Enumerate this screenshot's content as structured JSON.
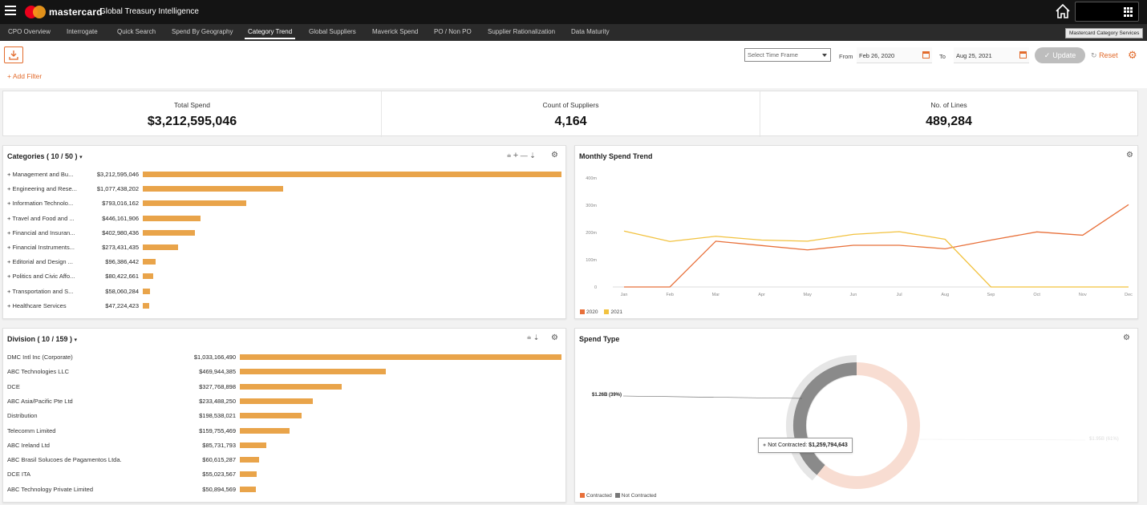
{
  "header": {
    "brand": "mastercard",
    "app_title": "Global Treasury Intelligence",
    "home_icon": "home-icon",
    "apps_icon": "grid-apps-icon"
  },
  "nav": {
    "tabs": [
      {
        "label": "CPO Overview",
        "active": false
      },
      {
        "label": "Interrogate",
        "active": false
      },
      {
        "label": "Quick Search",
        "active": false
      },
      {
        "label": "Spend By Geography",
        "active": false
      },
      {
        "label": "Category Trend",
        "active": true
      },
      {
        "label": "Global Suppliers",
        "active": false
      },
      {
        "label": "Maverick Spend",
        "active": false
      },
      {
        "label": "PO / Non PO",
        "active": false
      },
      {
        "label": "Supplier Rationalization",
        "active": false
      },
      {
        "label": "Data Maturity",
        "active": false
      }
    ],
    "tooltip": "Mastercard Category Services"
  },
  "toolbar": {
    "add_filter": "+ Add Filter",
    "time_frame_placeholder": "Select Time Frame",
    "from_label": "From",
    "from_date": "Feb 26, 2020",
    "to_label": "To",
    "to_date": "Aug 25, 2021",
    "update_label": "Update",
    "reset_label": "Reset",
    "accent": "#e26b2c"
  },
  "kpis": [
    {
      "title": "Total Spend",
      "value": "$3,212,595,046"
    },
    {
      "title": "Count of Suppliers",
      "value": "4,164"
    },
    {
      "title": "No. of Lines",
      "value": "489,284"
    }
  ],
  "categories": {
    "title": "Categories ( 10 / 50 )",
    "rows": [
      {
        "label": "+ Management and Bu...",
        "value_text": "$3,212,595,046",
        "value": 3212595046
      },
      {
        "label": "+ Engineering and Rese...",
        "value_text": "$1,077,438,202",
        "value": 1077438202
      },
      {
        "label": "+ Information Technolo...",
        "value_text": "$793,016,162",
        "value": 793016162
      },
      {
        "label": "+ Travel and Food and ...",
        "value_text": "$446,161,906",
        "value": 446161906
      },
      {
        "label": "+ Financial and Insuran...",
        "value_text": "$402,980,436",
        "value": 402980436
      },
      {
        "label": "+ Financial Instruments...",
        "value_text": "$273,431,435",
        "value": 273431435
      },
      {
        "label": "+ Editorial and Design ...",
        "value_text": "$96,386,442",
        "value": 96386442
      },
      {
        "label": "+ Politics and Civic Affo...",
        "value_text": "$80,422,661",
        "value": 80422661
      },
      {
        "label": "+ Transportation and S...",
        "value_text": "$58,060,284",
        "value": 58060284
      },
      {
        "label": "+ Healthcare Services",
        "value_text": "$47,224,423",
        "value": 47224423
      }
    ]
  },
  "divisions": {
    "title": "Division ( 10 / 159 )",
    "rows": [
      {
        "label": "DMC Intl Inc (Corporate)",
        "value_text": "$1,033,166,490",
        "value": 1033166490
      },
      {
        "label": "ABC Technologies LLC",
        "value_text": "$469,944,385",
        "value": 469944385
      },
      {
        "label": "DCE",
        "value_text": "$327,768,898",
        "value": 327768898
      },
      {
        "label": "ABC Asia/Pacific Pte Ltd",
        "value_text": "$233,488,250",
        "value": 233488250
      },
      {
        "label": "Distribution",
        "value_text": "$198,538,021",
        "value": 198538021
      },
      {
        "label": "Telecomm Limited",
        "value_text": "$159,755,469",
        "value": 159755469
      },
      {
        "label": "ABC Ireland Ltd",
        "value_text": "$85,731,793",
        "value": 85731793
      },
      {
        "label": "ABC Brasil Solucoes de Pagamentos Ltda.",
        "value_text": "$60,615,287",
        "value": 60615287
      },
      {
        "label": "DCE ITA",
        "value_text": "$55,023,567",
        "value": 55023567
      },
      {
        "label": "ABC Technology Private Limited",
        "value_text": "$50,894,569",
        "value": 50894569
      }
    ]
  },
  "monthly": {
    "title": "Monthly Spend Trend"
  },
  "spend_type": {
    "title": "Spend Type",
    "left_label": "$1.26B (39%)",
    "right_label": "$1.95B (61%)",
    "tooltip_label": "Not Contracted:",
    "tooltip_value": "$1,259,794,643"
  },
  "chart_data": [
    {
      "type": "bar",
      "title": "Categories ( 10 / 50 )",
      "categories": [
        "+ Management and Bu...",
        "+ Engineering and Rese...",
        "+ Information Technolo...",
        "+ Travel and Food and ...",
        "+ Financial and Insuran...",
        "+ Financial Instruments...",
        "+ Editorial and Design ...",
        "+ Politics and Civic Affo...",
        "+ Transportation and S...",
        "+ Healthcare Services"
      ],
      "values": [
        3212595046,
        1077438202,
        793016162,
        446161906,
        402980436,
        273431435,
        96386442,
        80422661,
        58060284,
        47224423
      ],
      "color": "#e9a44a"
    },
    {
      "type": "bar",
      "title": "Division ( 10 / 159 )",
      "categories": [
        "DMC Intl Inc (Corporate)",
        "ABC Technologies LLC",
        "DCE",
        "ABC Asia/Pacific Pte Ltd",
        "Distribution",
        "Telecomm Limited",
        "ABC Ireland Ltd",
        "ABC Brasil Solucoes de Pagamentos Ltda.",
        "DCE ITA",
        "ABC Technology Private Limited"
      ],
      "values": [
        1033166490,
        469944385,
        327768898,
        233488250,
        198538021,
        159755469,
        85731793,
        60615287,
        55023567,
        50894569
      ],
      "color": "#e9a44a"
    },
    {
      "type": "line",
      "title": "Monthly Spend Trend",
      "x": [
        "Jan",
        "Feb",
        "Mar",
        "Apr",
        "May",
        "Jun",
        "Jul",
        "Aug",
        "Sep",
        "Oct",
        "Nov",
        "Dec"
      ],
      "y_ticks": [
        "0",
        "100m",
        "200m",
        "300m",
        "400m"
      ],
      "ylim": [
        0,
        400000000
      ],
      "series": [
        {
          "name": "2020",
          "color": "#e8703a",
          "values": [
            0,
            0,
            168000000,
            152000000,
            136000000,
            153000000,
            153000000,
            140000000,
            172000000,
            202000000,
            190000000,
            302000000
          ]
        },
        {
          "name": "2021",
          "color": "#f2c23f",
          "values": [
            205000000,
            167000000,
            186000000,
            172000000,
            168000000,
            193000000,
            203000000,
            175000000,
            0,
            0,
            0,
            0
          ]
        }
      ],
      "legend": "bottom-left"
    },
    {
      "type": "pie",
      "title": "Spend Type",
      "slices": [
        {
          "name": "Contracted",
          "value": 1952800403,
          "label": "$1.95B (61%)",
          "color": "#f8ddd2"
        },
        {
          "name": "Not Contracted",
          "value": 1259794643,
          "label": "$1.26B (39%)",
          "color": "#8a8a8a"
        }
      ],
      "legend": "bottom-left"
    }
  ]
}
